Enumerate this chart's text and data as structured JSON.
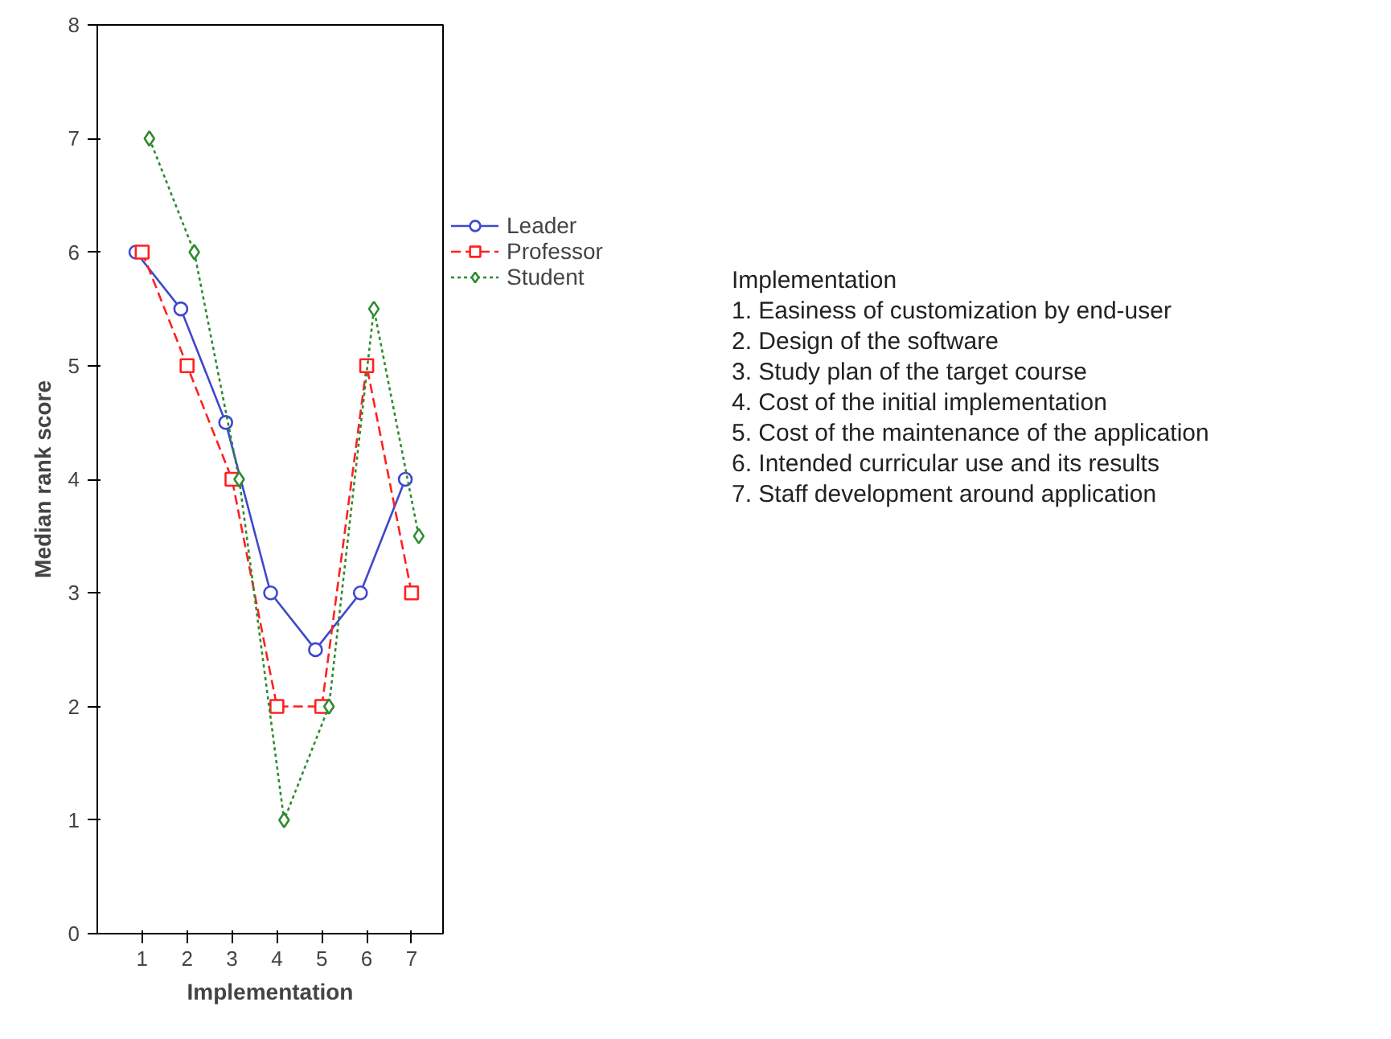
{
  "chart_data": {
    "type": "line",
    "xlabel": "Implementation",
    "ylabel": "Median rank score",
    "xlim": [
      0,
      7.7
    ],
    "xticks": [
      1,
      2,
      3,
      4,
      5,
      6,
      7
    ],
    "ylim": [
      0,
      8
    ],
    "yticks": [
      0,
      1,
      2,
      3,
      4,
      5,
      6,
      7,
      8
    ],
    "grid": false,
    "legend": "right",
    "series": [
      {
        "name": "Leader",
        "color": "#3f48cc",
        "marker": "circle",
        "line_style": "solid",
        "x": [
          0.86,
          1.86,
          2.86,
          3.86,
          4.86,
          5.86,
          6.86
        ],
        "values": [
          6,
          5.5,
          4.5,
          3,
          2.5,
          3,
          4
        ]
      },
      {
        "name": "Professor",
        "color": "#ff2020",
        "marker": "square",
        "line_style": "dashed",
        "x": [
          1,
          2,
          3,
          4,
          5,
          6,
          7
        ],
        "values": [
          6,
          5,
          4,
          2,
          2,
          5,
          3
        ]
      },
      {
        "name": "Student",
        "color": "#2e8b2e",
        "marker": "diamond",
        "line_style": "dotted",
        "x": [
          1.16,
          2.16,
          3.16,
          4.16,
          5.16,
          6.16,
          7.16
        ],
        "values": [
          7,
          6,
          4,
          1,
          2,
          5.5,
          3.5
        ]
      }
    ],
    "annotations": [
      "Implementation",
      "1. Easiness of customization by end-user",
      "2. Design of the software",
      "3. Study plan of the target course",
      "4. Cost of the initial implementation",
      "5. Cost of the maintenance of the application",
      "6. Intended curricular use and its results",
      "7. Staff development around application"
    ]
  }
}
